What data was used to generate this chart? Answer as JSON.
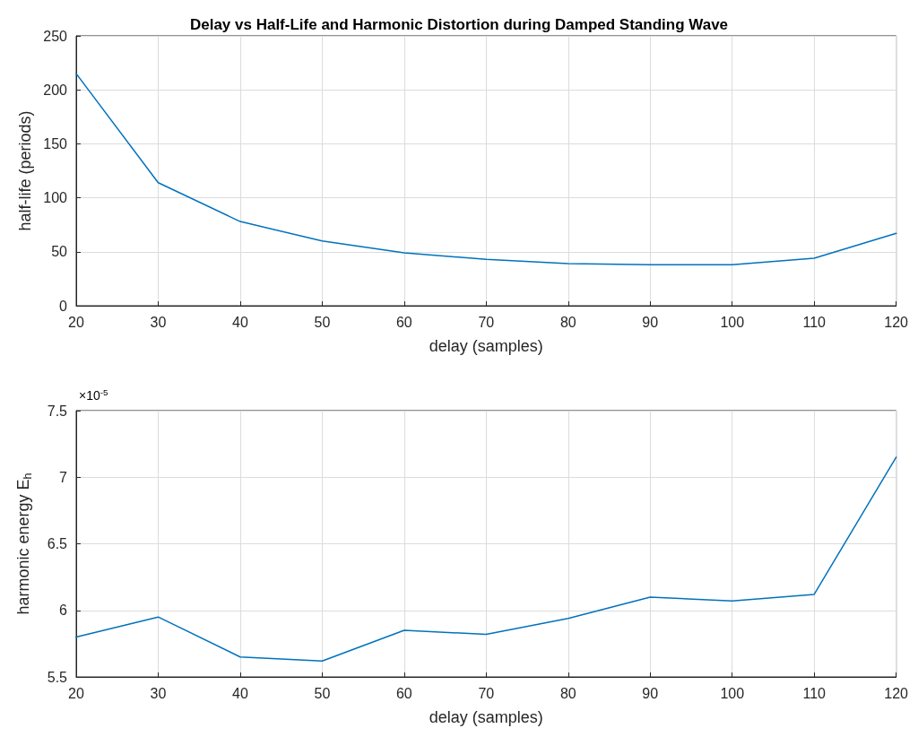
{
  "chart_data": [
    {
      "type": "line",
      "title": "Delay vs Half-Life and Harmonic Distortion during Damped Standing Wave",
      "xlabel": "delay (samples)",
      "ylabel": "half-life (periods)",
      "x": [
        20,
        30,
        40,
        50,
        60,
        70,
        80,
        90,
        100,
        110,
        120
      ],
      "series": [
        {
          "color": "#0072bd",
          "values": [
            215,
            114,
            78,
            60,
            49,
            43,
            39,
            38,
            38,
            44,
            67
          ]
        }
      ],
      "xlim": [
        20,
        120
      ],
      "xticks": [
        20,
        30,
        40,
        50,
        60,
        70,
        80,
        90,
        100,
        110,
        120
      ],
      "ylim": [
        0,
        250
      ],
      "yticks": [
        0,
        50,
        100,
        150,
        200,
        250
      ],
      "grid": true,
      "marker": "none",
      "line_style": "solid"
    },
    {
      "type": "line",
      "xlabel": "delay (samples)",
      "ylabel": "harmonic energy E$_{h}$",
      "annotations": [
        "×10$^{-5}$"
      ],
      "x": [
        20,
        30,
        40,
        50,
        60,
        70,
        80,
        90,
        100,
        110,
        120
      ],
      "series": [
        {
          "color": "#0072bd",
          "values": [
            5.8,
            5.95,
            5.65,
            5.62,
            5.85,
            5.82,
            5.94,
            6.1,
            6.07,
            6.12,
            7.15
          ]
        }
      ],
      "xlim": [
        20,
        120
      ],
      "xticks": [
        20,
        30,
        40,
        50,
        60,
        70,
        80,
        90,
        100,
        110,
        120
      ],
      "ylim": [
        5.5,
        7.5
      ],
      "yticks": [
        5.5,
        6,
        6.5,
        7,
        7.5
      ],
      "grid": true,
      "marker": "none",
      "line_style": "solid"
    }
  ]
}
